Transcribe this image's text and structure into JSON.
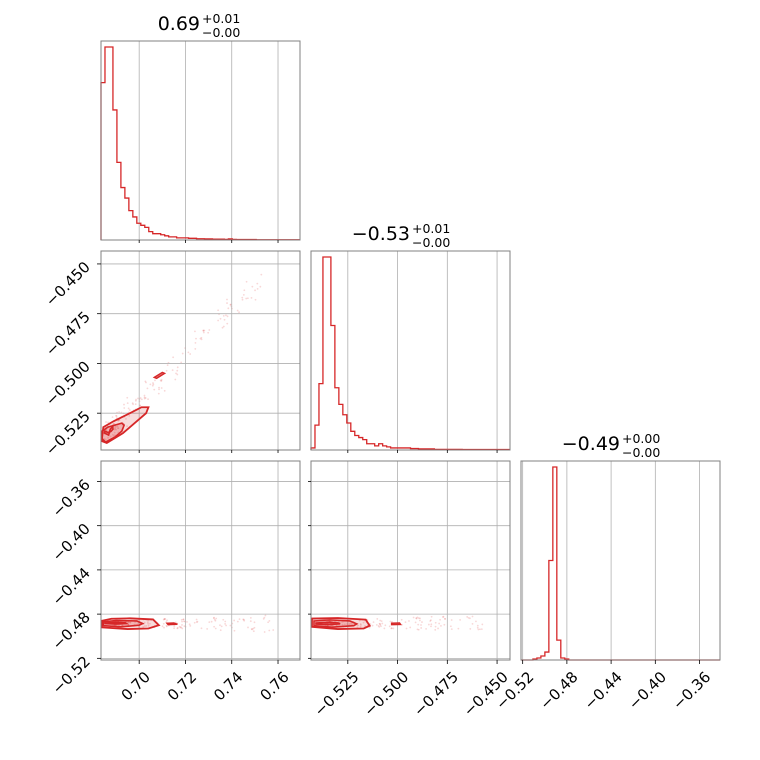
{
  "chart_data": {
    "type": "corner",
    "color": "#d62728",
    "parameters": [
      {
        "title": {
          "median": "0.69",
          "plus": "+0.01",
          "minus": "−0.00"
        },
        "range": [
          0.6835,
          0.7695
        ],
        "ticks": [
          {
            "value": 0.7,
            "label": "0.70"
          },
          {
            "value": 0.72,
            "label": "0.72"
          },
          {
            "value": 0.74,
            "label": "0.74"
          },
          {
            "value": 0.76,
            "label": "0.76"
          }
        ],
        "histogram": {
          "start": 0.6835,
          "step": 0.00172,
          "counts": [
            75,
            92,
            92,
            62,
            37,
            25,
            20,
            14,
            11,
            8,
            7,
            6,
            4,
            3,
            3,
            2.5,
            2,
            1.5,
            1.5,
            1,
            1,
            1,
            0.8,
            0.8,
            0.6,
            0.6,
            0.5,
            0.5,
            0.4,
            0.4,
            0.4,
            0.3,
            0.5,
            0.3,
            0.2,
            0.2,
            0.2,
            0.2,
            0.2,
            0.1,
            0.1,
            0.1,
            0.1,
            0.1,
            0.1,
            0.1,
            0.1,
            0.1,
            0.1,
            0.1
          ]
        }
      },
      {
        "title": {
          "median": "−0.53",
          "plus": "+0.01",
          "minus": "−0.00"
        },
        "range": [
          -0.5435,
          -0.4435
        ],
        "ticks": [
          {
            "value": -0.525,
            "label": "−0.525"
          },
          {
            "value": -0.5,
            "label": "−0.500"
          },
          {
            "value": -0.475,
            "label": "−0.475"
          },
          {
            "value": -0.45,
            "label": "−0.450"
          }
        ],
        "histogram": {
          "start": -0.5435,
          "step": 0.002,
          "counts": [
            1,
            12,
            32,
            93,
            93,
            60,
            30,
            22,
            17,
            13,
            9,
            7,
            6,
            5,
            3,
            3,
            2,
            3,
            2,
            1.5,
            1,
            1,
            1,
            1,
            1,
            0.7,
            0.7,
            0.5,
            0.5,
            0.5,
            0.5,
            0.3,
            0.3,
            0.3,
            0.3,
            0.3,
            0.3,
            0.3,
            0.2,
            0.2,
            0.2,
            0.2,
            0.2,
            0.2,
            0.2,
            0.2,
            0.2,
            0.2,
            0.2,
            0.2
          ]
        }
      },
      {
        "title": {
          "median": "−0.49",
          "plus": "+0.00",
          "minus": "−0.00"
        },
        "range": [
          -0.5215,
          -0.3415
        ],
        "ticks": [
          {
            "value": -0.52,
            "label": "−0.52"
          },
          {
            "value": -0.48,
            "label": "−0.48"
          },
          {
            "value": -0.44,
            "label": "−0.44"
          },
          {
            "value": -0.4,
            "label": "−0.40"
          },
          {
            "value": -0.36,
            "label": "−0.36"
          }
        ],
        "histogram": {
          "start": -0.5215,
          "step": 0.0036,
          "counts": [
            0,
            0,
            0,
            0.5,
            1,
            2,
            4,
            50,
            97,
            10,
            1,
            0.5,
            0,
            0,
            0,
            0,
            0,
            0,
            0,
            0,
            0,
            0,
            0,
            0,
            0,
            0,
            0,
            0,
            0,
            0,
            0,
            0,
            0,
            0,
            0,
            0,
            0,
            0,
            0,
            0,
            0,
            0,
            0,
            0,
            0,
            0,
            0,
            0,
            0,
            0
          ]
        }
      }
    ],
    "pairs": [
      {
        "x_param": 0,
        "y_param": 1,
        "shape": "correlated-diagonal",
        "core": {
          "x": [
            0.685,
            0.6868,
            0.6875,
            0.6885,
            0.6887,
            0.6878,
            0.6865,
            0.6852
          ],
          "y": [
            -0.535,
            -0.536,
            -0.533,
            -0.5318,
            -0.533,
            -0.5342,
            -0.5347,
            -0.534
          ]
        },
        "level1": {
          "x": [
            0.684,
            0.6855,
            0.6895,
            0.6925,
            0.6935,
            0.6925,
            0.6895,
            0.6865,
            0.684
          ],
          "y": [
            -0.538,
            -0.5395,
            -0.537,
            -0.534,
            -0.531,
            -0.53,
            -0.531,
            -0.532,
            -0.534
          ]
        },
        "level2": {
          "x": [
            0.6838,
            0.686,
            0.693,
            0.703,
            0.704,
            0.701,
            0.696,
            0.689,
            0.6845
          ],
          "y": [
            -0.539,
            -0.54,
            -0.535,
            -0.525,
            -0.522,
            -0.522,
            -0.525,
            -0.529,
            -0.532
          ]
        },
        "blob": {
          "x": [
            0.7075,
            0.711,
            0.71,
            0.7065
          ],
          "y": [
            -0.5075,
            -0.505,
            -0.5045,
            -0.507
          ]
        }
      },
      {
        "x_param": 0,
        "y_param": 2,
        "shape": "horizontal-band",
        "core": {
          "x": [
            0.6852,
            0.69,
            0.6945,
            0.694,
            0.6895,
            0.6852
          ],
          "y": [
            -0.4885,
            -0.489,
            -0.4885,
            -0.4878,
            -0.4875,
            -0.488
          ]
        },
        "level1": {
          "x": [
            0.6845,
            0.692,
            0.7,
            0.7015,
            0.699,
            0.69,
            0.6845
          ],
          "y": [
            -0.4905,
            -0.4915,
            -0.49,
            -0.4885,
            -0.4862,
            -0.4858,
            -0.487
          ]
        },
        "level2": {
          "x": [
            0.6838,
            0.695,
            0.704,
            0.7085,
            0.706,
            0.696,
            0.688,
            0.684
          ],
          "y": [
            -0.492,
            -0.4935,
            -0.493,
            -0.49,
            -0.4848,
            -0.4838,
            -0.4842,
            -0.486
          ]
        },
        "blob": {
          "x": [
            0.7125,
            0.7165,
            0.715,
            0.712
          ],
          "y": [
            -0.4895,
            -0.4892,
            -0.488,
            -0.4883
          ]
        }
      },
      {
        "x_param": 1,
        "y_param": 2,
        "shape": "horizontal-band",
        "core": {
          "x": [
            -0.541,
            -0.534,
            -0.529,
            -0.53,
            -0.536,
            -0.541
          ],
          "y": [
            -0.489,
            -0.4895,
            -0.4888,
            -0.488,
            -0.4875,
            -0.488
          ]
        },
        "level1": {
          "x": [
            -0.542,
            -0.533,
            -0.522,
            -0.5205,
            -0.524,
            -0.534,
            -0.542
          ],
          "y": [
            -0.4905,
            -0.4918,
            -0.4905,
            -0.4888,
            -0.4862,
            -0.4852,
            -0.4862
          ]
        },
        "level2": {
          "x": [
            -0.543,
            -0.53,
            -0.517,
            -0.514,
            -0.516,
            -0.53,
            -0.543
          ],
          "y": [
            -0.4915,
            -0.4935,
            -0.493,
            -0.4905,
            -0.485,
            -0.4835,
            -0.484
          ]
        },
        "blob": {
          "x": [
            -0.503,
            -0.4985,
            -0.499,
            -0.503
          ],
          "y": [
            -0.4895,
            -0.4893,
            -0.488,
            -0.4882
          ]
        }
      }
    ]
  }
}
